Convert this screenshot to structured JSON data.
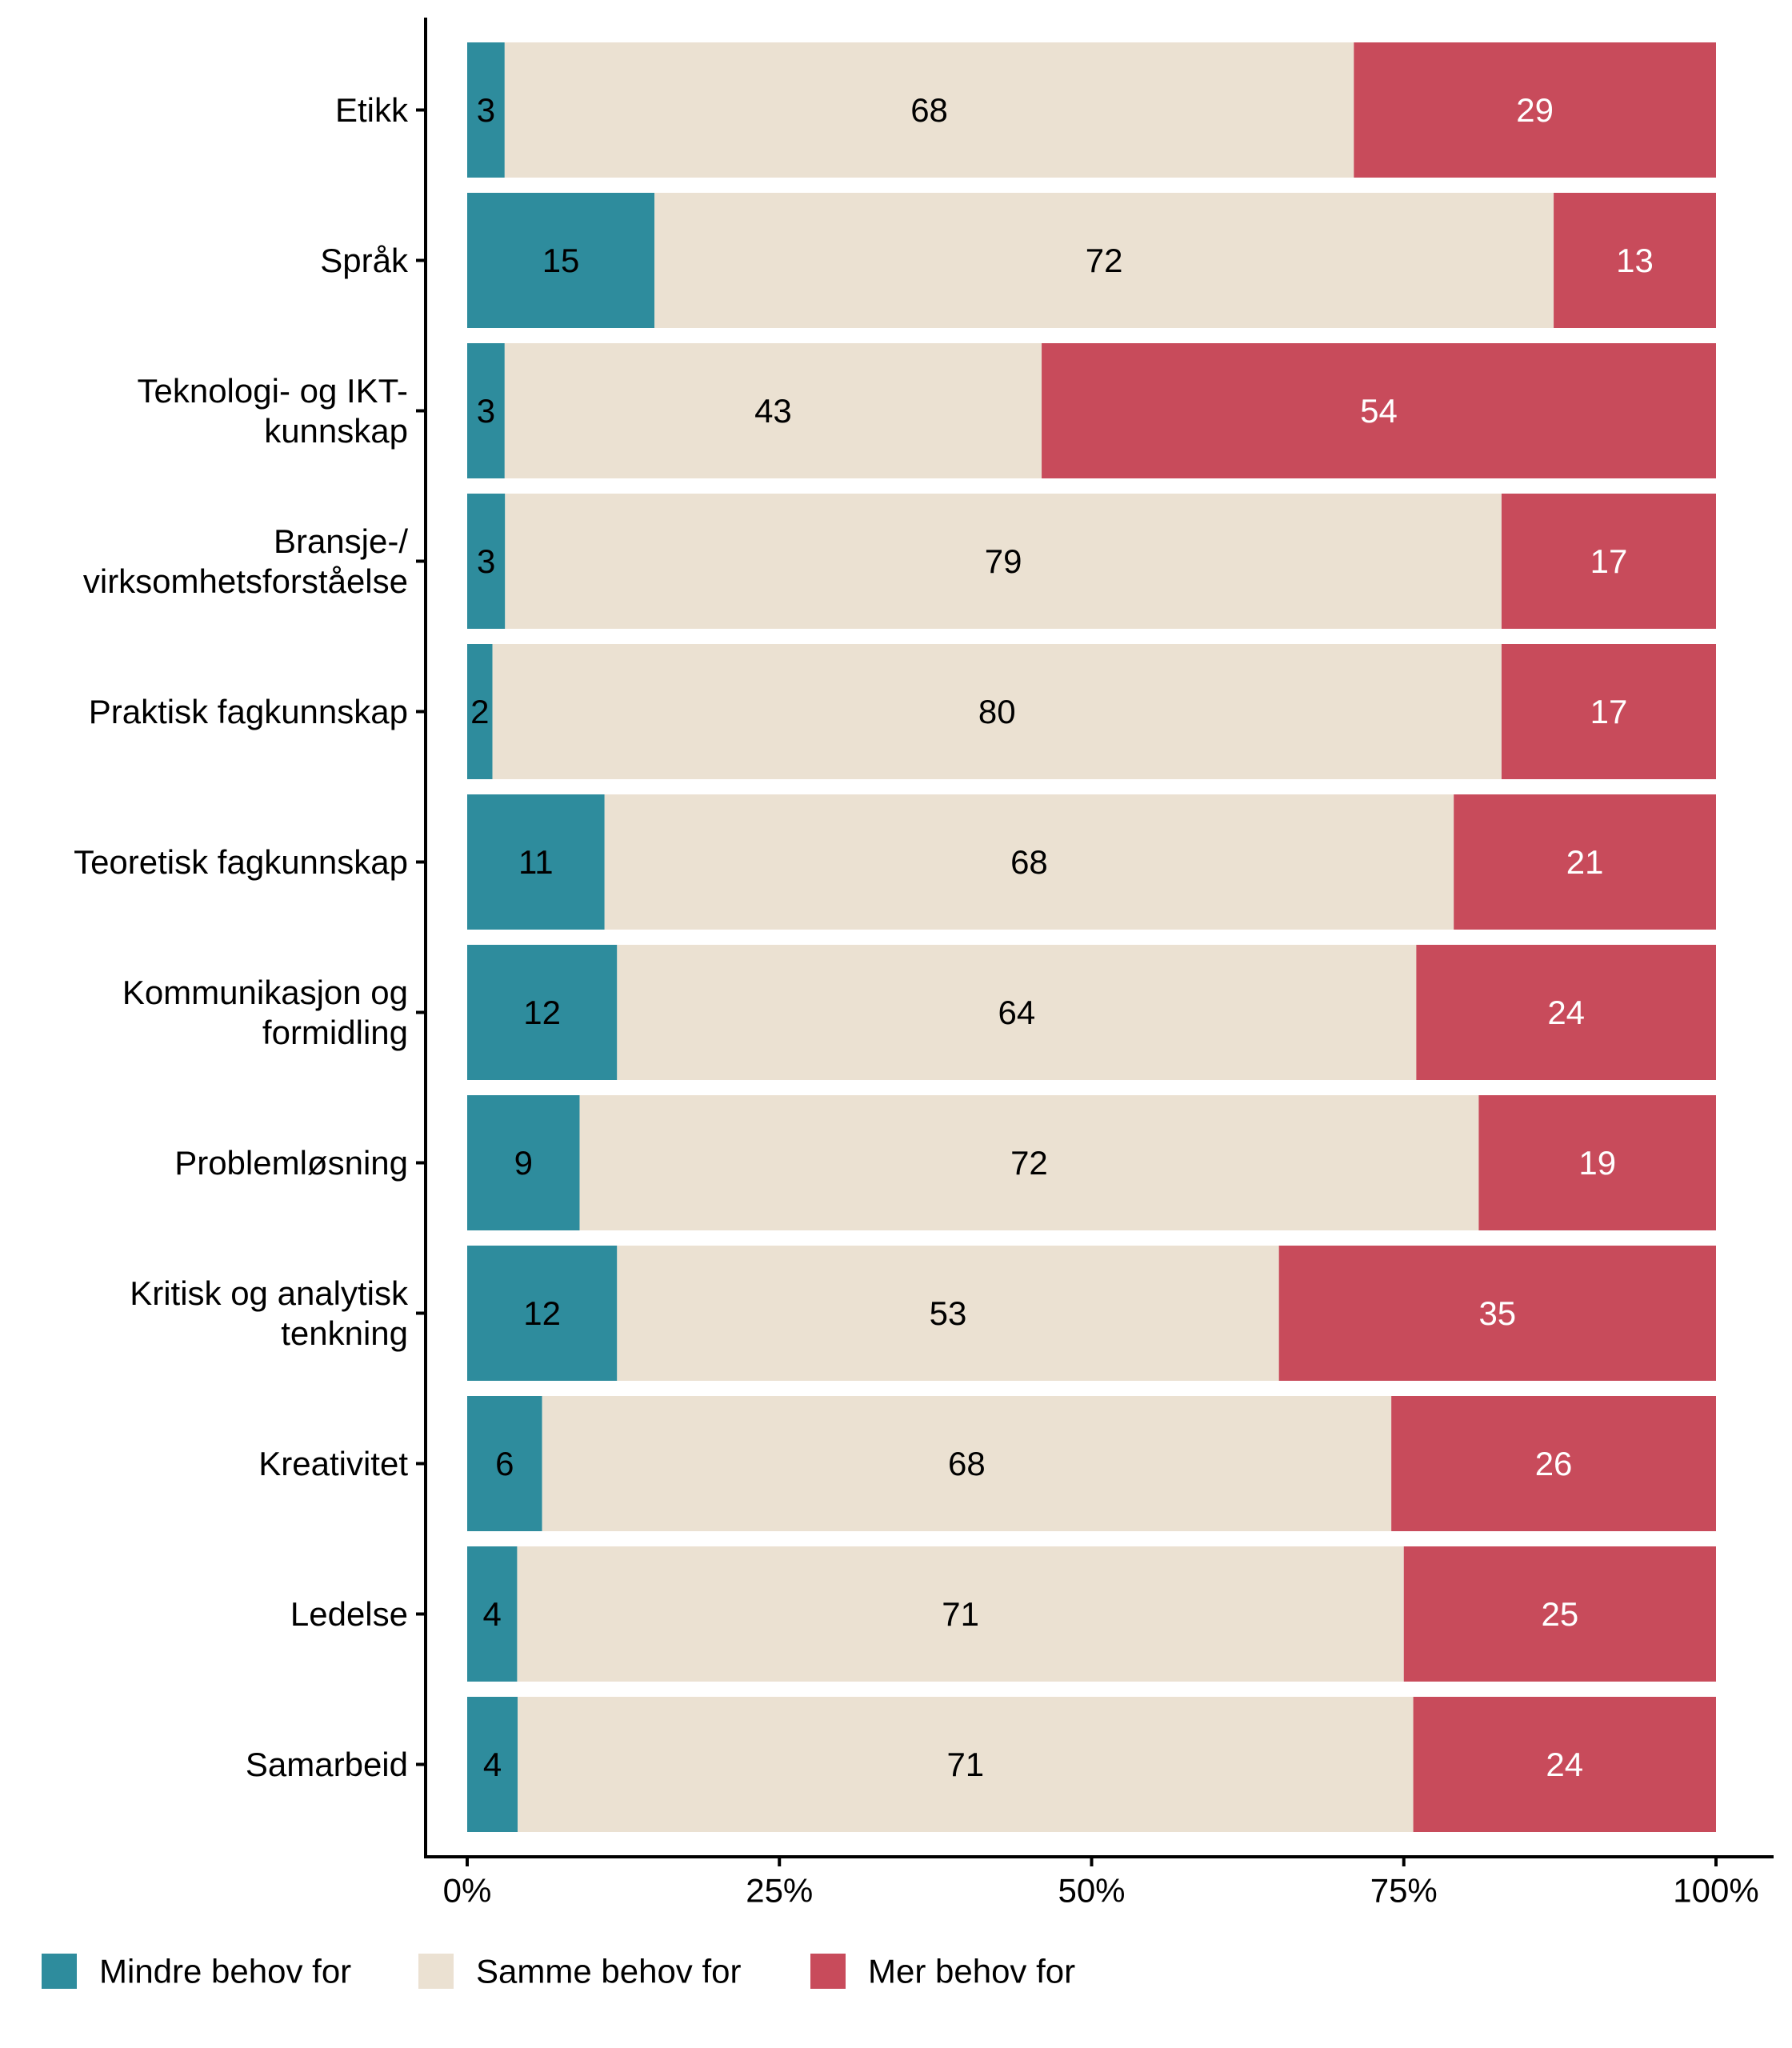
{
  "chart_data": {
    "type": "bar",
    "orientation": "horizontal",
    "stacked": "percent",
    "title": "",
    "xlabel": "",
    "ylabel": "",
    "xlim": [
      0,
      100
    ],
    "x_ticks": [
      "0%",
      "25%",
      "50%",
      "75%",
      "100%"
    ],
    "x_tick_values": [
      0,
      25,
      50,
      75,
      100
    ],
    "grid": false,
    "legend_position": "bottom-left",
    "categories": [
      [
        "Etikk"
      ],
      [
        "Språk"
      ],
      [
        "Teknologi- og IKT-",
        "kunnskap"
      ],
      [
        "Bransje-/",
        "virksomhetsforståelse"
      ],
      [
        "Praktisk fagkunnskap"
      ],
      [
        "Teoretisk fagkunnskap"
      ],
      [
        "Kommunikasjon og",
        "formidling"
      ],
      [
        "Problemløsning"
      ],
      [
        "Kritisk og analytisk",
        "tenkning"
      ],
      [
        "Kreativitet"
      ],
      [
        "Ledelse"
      ],
      [
        "Samarbeid"
      ]
    ],
    "series": [
      {
        "name": "Mindre behov for",
        "color": "#2E8C9D",
        "label_color": "#000000",
        "values": [
          3,
          15,
          3,
          3,
          2,
          11,
          12,
          9,
          12,
          6,
          4,
          4
        ]
      },
      {
        "name": "Samme behov for",
        "color": "#EBE1D2",
        "label_color": "#000000",
        "values": [
          68,
          72,
          43,
          79,
          80,
          68,
          64,
          72,
          53,
          68,
          71,
          71
        ]
      },
      {
        "name": "Mer behov for",
        "color": "#C84B5B",
        "label_color": "#FFFFFF",
        "values": [
          29,
          13,
          54,
          17,
          17,
          21,
          24,
          19,
          35,
          26,
          25,
          24
        ]
      }
    ]
  }
}
